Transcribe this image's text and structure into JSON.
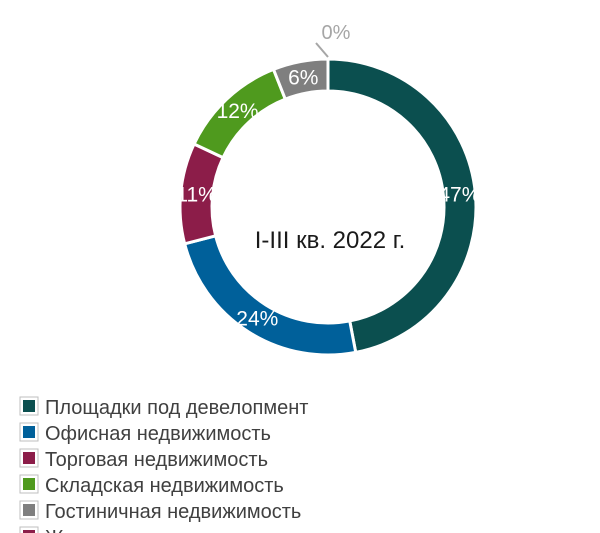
{
  "chart_data": {
    "type": "pie",
    "donut": true,
    "center_label": "I-III кв. 2022 г.",
    "categories": [
      "Площадки под девелопмент",
      "Офисная недвижимость",
      "Торговая недвижимость",
      "Складская недвижимость",
      "Гостиничная недвижимость",
      "Жилая недвижимость"
    ],
    "values": [
      47,
      24,
      11,
      12,
      6,
      0
    ],
    "labels": [
      "47%",
      "24%",
      "11%",
      "12%",
      "6%",
      "0%"
    ],
    "colors": [
      "#0b4f4f",
      "#00609a",
      "#8c1d49",
      "#4f9a1e",
      "#7f7f7f",
      "#8c1d49"
    ],
    "legend_position": "bottom-left"
  }
}
